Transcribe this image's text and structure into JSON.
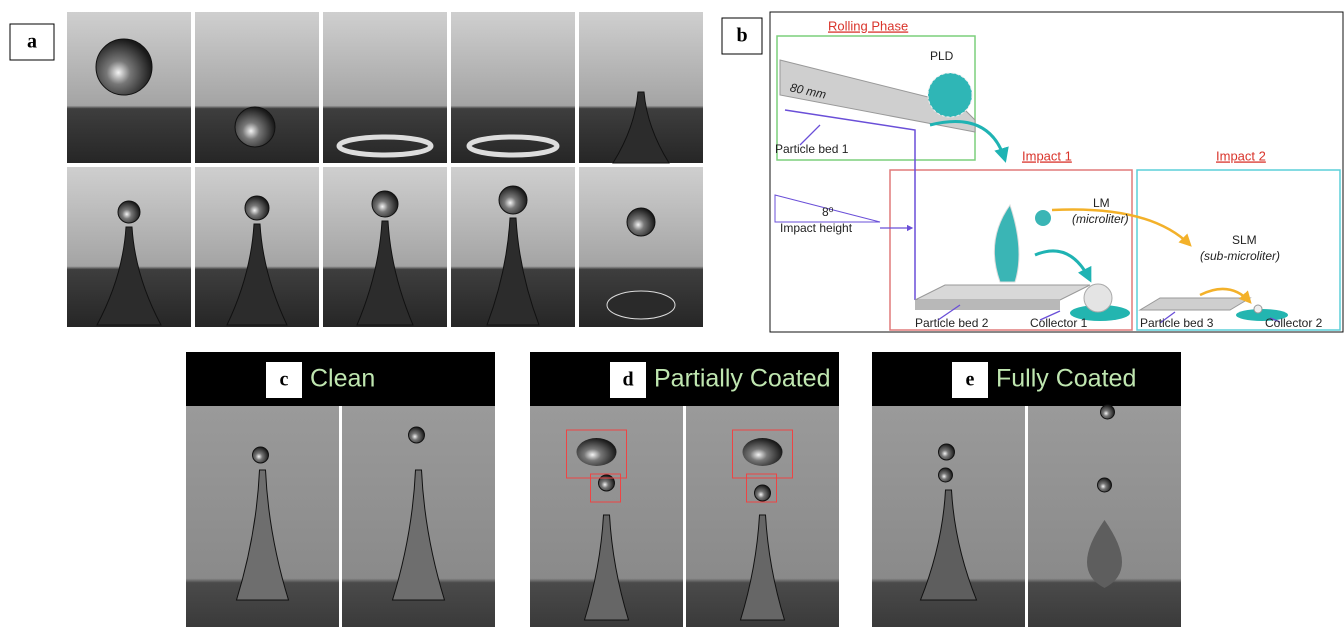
{
  "panels": [
    {
      "label": "a"
    },
    {
      "label": "b",
      "diagram": {
        "rolling_phase": "Rolling Phase",
        "pld": "PLD",
        "length": "80 mm",
        "particle_bed_1": "Particle bed 1",
        "impact_1": "Impact 1",
        "impact_2": "Impact 2",
        "angle": "8⁰",
        "impact_height": "Impact height",
        "lm": "LM",
        "lm_volume": "(microliter)",
        "slm": "SLM",
        "slm_volume": "(sub-microliter)",
        "particle_bed_2": "Particle bed 2",
        "collector_1": "Collector 1",
        "particle_bed_3": "Particle bed 3",
        "collector_2": "Collector 2"
      }
    },
    {
      "label": "c",
      "title": "Clean"
    },
    {
      "label": "d",
      "title": "Partially Coated"
    },
    {
      "label": "e",
      "title": "Fully Coated"
    }
  ]
}
